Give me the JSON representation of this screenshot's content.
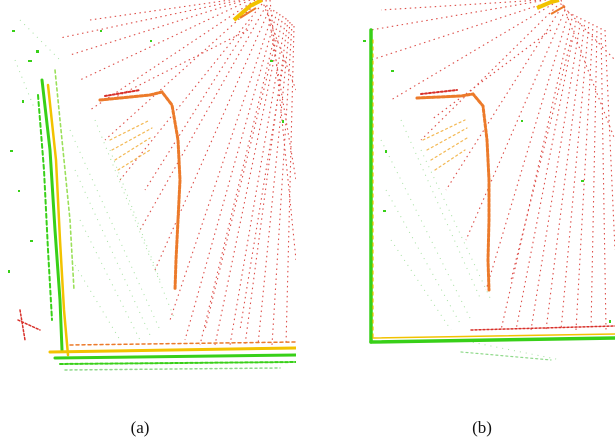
{
  "figure": {
    "captions": {
      "a": "(a)",
      "b": "(b)"
    }
  },
  "colors": {
    "background": "#ffffff",
    "ray_red": "#d8302a",
    "ray_orange": "#ec7a2a",
    "wall_yellow": "#f2c200",
    "wall_green": "#38d018",
    "scatter_green": "#8fd98a"
  }
}
